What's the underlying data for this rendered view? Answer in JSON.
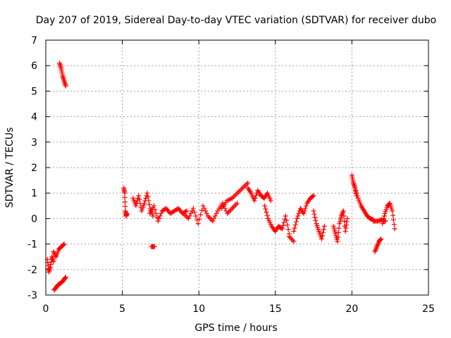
{
  "chart_data": {
    "type": "scatter",
    "title": "Day 207 of 2019, Sidereal Day-to-day VTEC variation (SDTVAR) for receiver dubo",
    "xlabel": "GPS time / hours",
    "ylabel": "SDTVAR / TECUs",
    "xlim": [
      0,
      25
    ],
    "ylim": [
      -3,
      7
    ],
    "xticks": [
      0,
      5,
      10,
      15,
      20,
      25
    ],
    "yticks": [
      -3,
      -2,
      -1,
      0,
      1,
      2,
      3,
      4,
      5,
      6,
      7
    ],
    "grid": true,
    "marker": "+",
    "color": "#ff0000",
    "series": [
      {
        "name": "SDTVAR",
        "segments": [
          {
            "x_start": 0.1,
            "x_end": 0.5,
            "values": [
              -1.6,
              -2.1,
              -1.9,
              -1.5,
              -1.7
            ]
          },
          {
            "x_start": 0.5,
            "x_end": 1.2,
            "values": [
              -1.3,
              -1.5,
              -1.2,
              -1.1,
              -1.0
            ]
          },
          {
            "x_start": 0.55,
            "x_end": 1.3,
            "values": [
              -2.8,
              -2.7,
              -2.6,
              -2.55,
              -2.5,
              -2.4,
              -2.3
            ]
          },
          {
            "x_start": 0.9,
            "x_end": 1.3,
            "values": [
              6.1,
              5.9,
              5.6,
              5.4,
              5.2
            ]
          },
          {
            "x_start": 5.1,
            "x_end": 5.3,
            "values": [
              1.2,
              1.0,
              0.3,
              0.1,
              0.2
            ]
          },
          {
            "x_start": 5.7,
            "x_end": 7.0,
            "values": [
              0.8,
              0.5,
              0.9,
              0.3,
              0.6,
              1.0,
              0.4,
              0.1
            ]
          },
          {
            "x_start": 6.9,
            "x_end": 7.1,
            "values": [
              -1.1,
              -1.1
            ]
          },
          {
            "x_start": 6.8,
            "x_end": 9.2,
            "values": [
              0.2,
              0.5,
              -0.1,
              0.3,
              0.4,
              0.2,
              0.3,
              0.4,
              0.2,
              0.3
            ]
          },
          {
            "x_start": 9.0,
            "x_end": 12.5,
            "values": [
              0.2,
              0.0,
              0.4,
              -0.2,
              0.5,
              0.1,
              -0.1,
              0.3,
              0.6,
              0.2,
              0.4,
              0.6
            ]
          },
          {
            "x_start": 11.5,
            "x_end": 13.2,
            "values": [
              0.4,
              0.7,
              0.8,
              1.0,
              1.2,
              1.4
            ]
          },
          {
            "x_start": 13.2,
            "x_end": 14.7,
            "values": [
              1.2,
              1.0,
              0.7,
              1.1,
              0.9,
              0.8,
              1.0,
              0.7
            ]
          },
          {
            "x_start": 14.3,
            "x_end": 15.9,
            "values": [
              0.5,
              0.0,
              -0.3,
              -0.5,
              -0.3,
              -0.4,
              0.1,
              -0.6
            ]
          },
          {
            "x_start": 15.9,
            "x_end": 16.2,
            "values": [
              -0.7,
              -0.9
            ]
          },
          {
            "x_start": 16.2,
            "x_end": 17.5,
            "values": [
              -0.5,
              0.0,
              0.4,
              0.2,
              0.6,
              0.8,
              0.9
            ]
          },
          {
            "x_start": 17.5,
            "x_end": 18.2,
            "values": [
              0.3,
              -0.2,
              -0.5,
              -0.8,
              -0.3
            ]
          },
          {
            "x_start": 18.8,
            "x_end": 19.7,
            "values": [
              -0.3,
              -0.6,
              -0.9,
              -0.2,
              0.1,
              0.3,
              -0.5,
              0.0
            ]
          },
          {
            "x_start": 20.0,
            "x_end": 20.3,
            "values": [
              1.7,
              1.4,
              1.2,
              0.9
            ]
          },
          {
            "x_start": 20.2,
            "x_end": 21.4,
            "values": [
              1.2,
              0.8,
              0.5,
              0.3,
              0.1,
              0.0,
              -0.05
            ]
          },
          {
            "x_start": 21.4,
            "x_end": 22.2,
            "values": [
              -0.1,
              -0.1,
              -0.05,
              -0.1
            ]
          },
          {
            "x_start": 21.5,
            "x_end": 21.9,
            "values": [
              -1.3,
              -1.1,
              -0.9,
              -0.8
            ]
          },
          {
            "x_start": 22.0,
            "x_end": 22.8,
            "values": [
              -0.2,
              0.2,
              0.5,
              0.6,
              0.3,
              -0.4
            ]
          }
        ]
      }
    ]
  }
}
